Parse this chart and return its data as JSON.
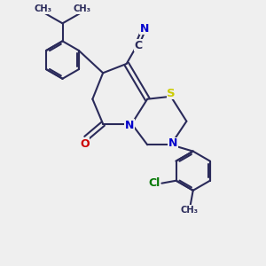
{
  "bg_color": "#efefef",
  "bond_color": "#2a2a5a",
  "bond_width": 1.5,
  "atom_S_color": "#cccc00",
  "atom_N_color": "#0000cc",
  "atom_O_color": "#cc0000",
  "atom_Cl_color": "#007700",
  "atom_C_color": "#2a2a5a",
  "figsize": [
    3.0,
    3.0
  ],
  "dpi": 100,
  "xlim": [
    0,
    10
  ],
  "ylim": [
    0,
    10
  ]
}
